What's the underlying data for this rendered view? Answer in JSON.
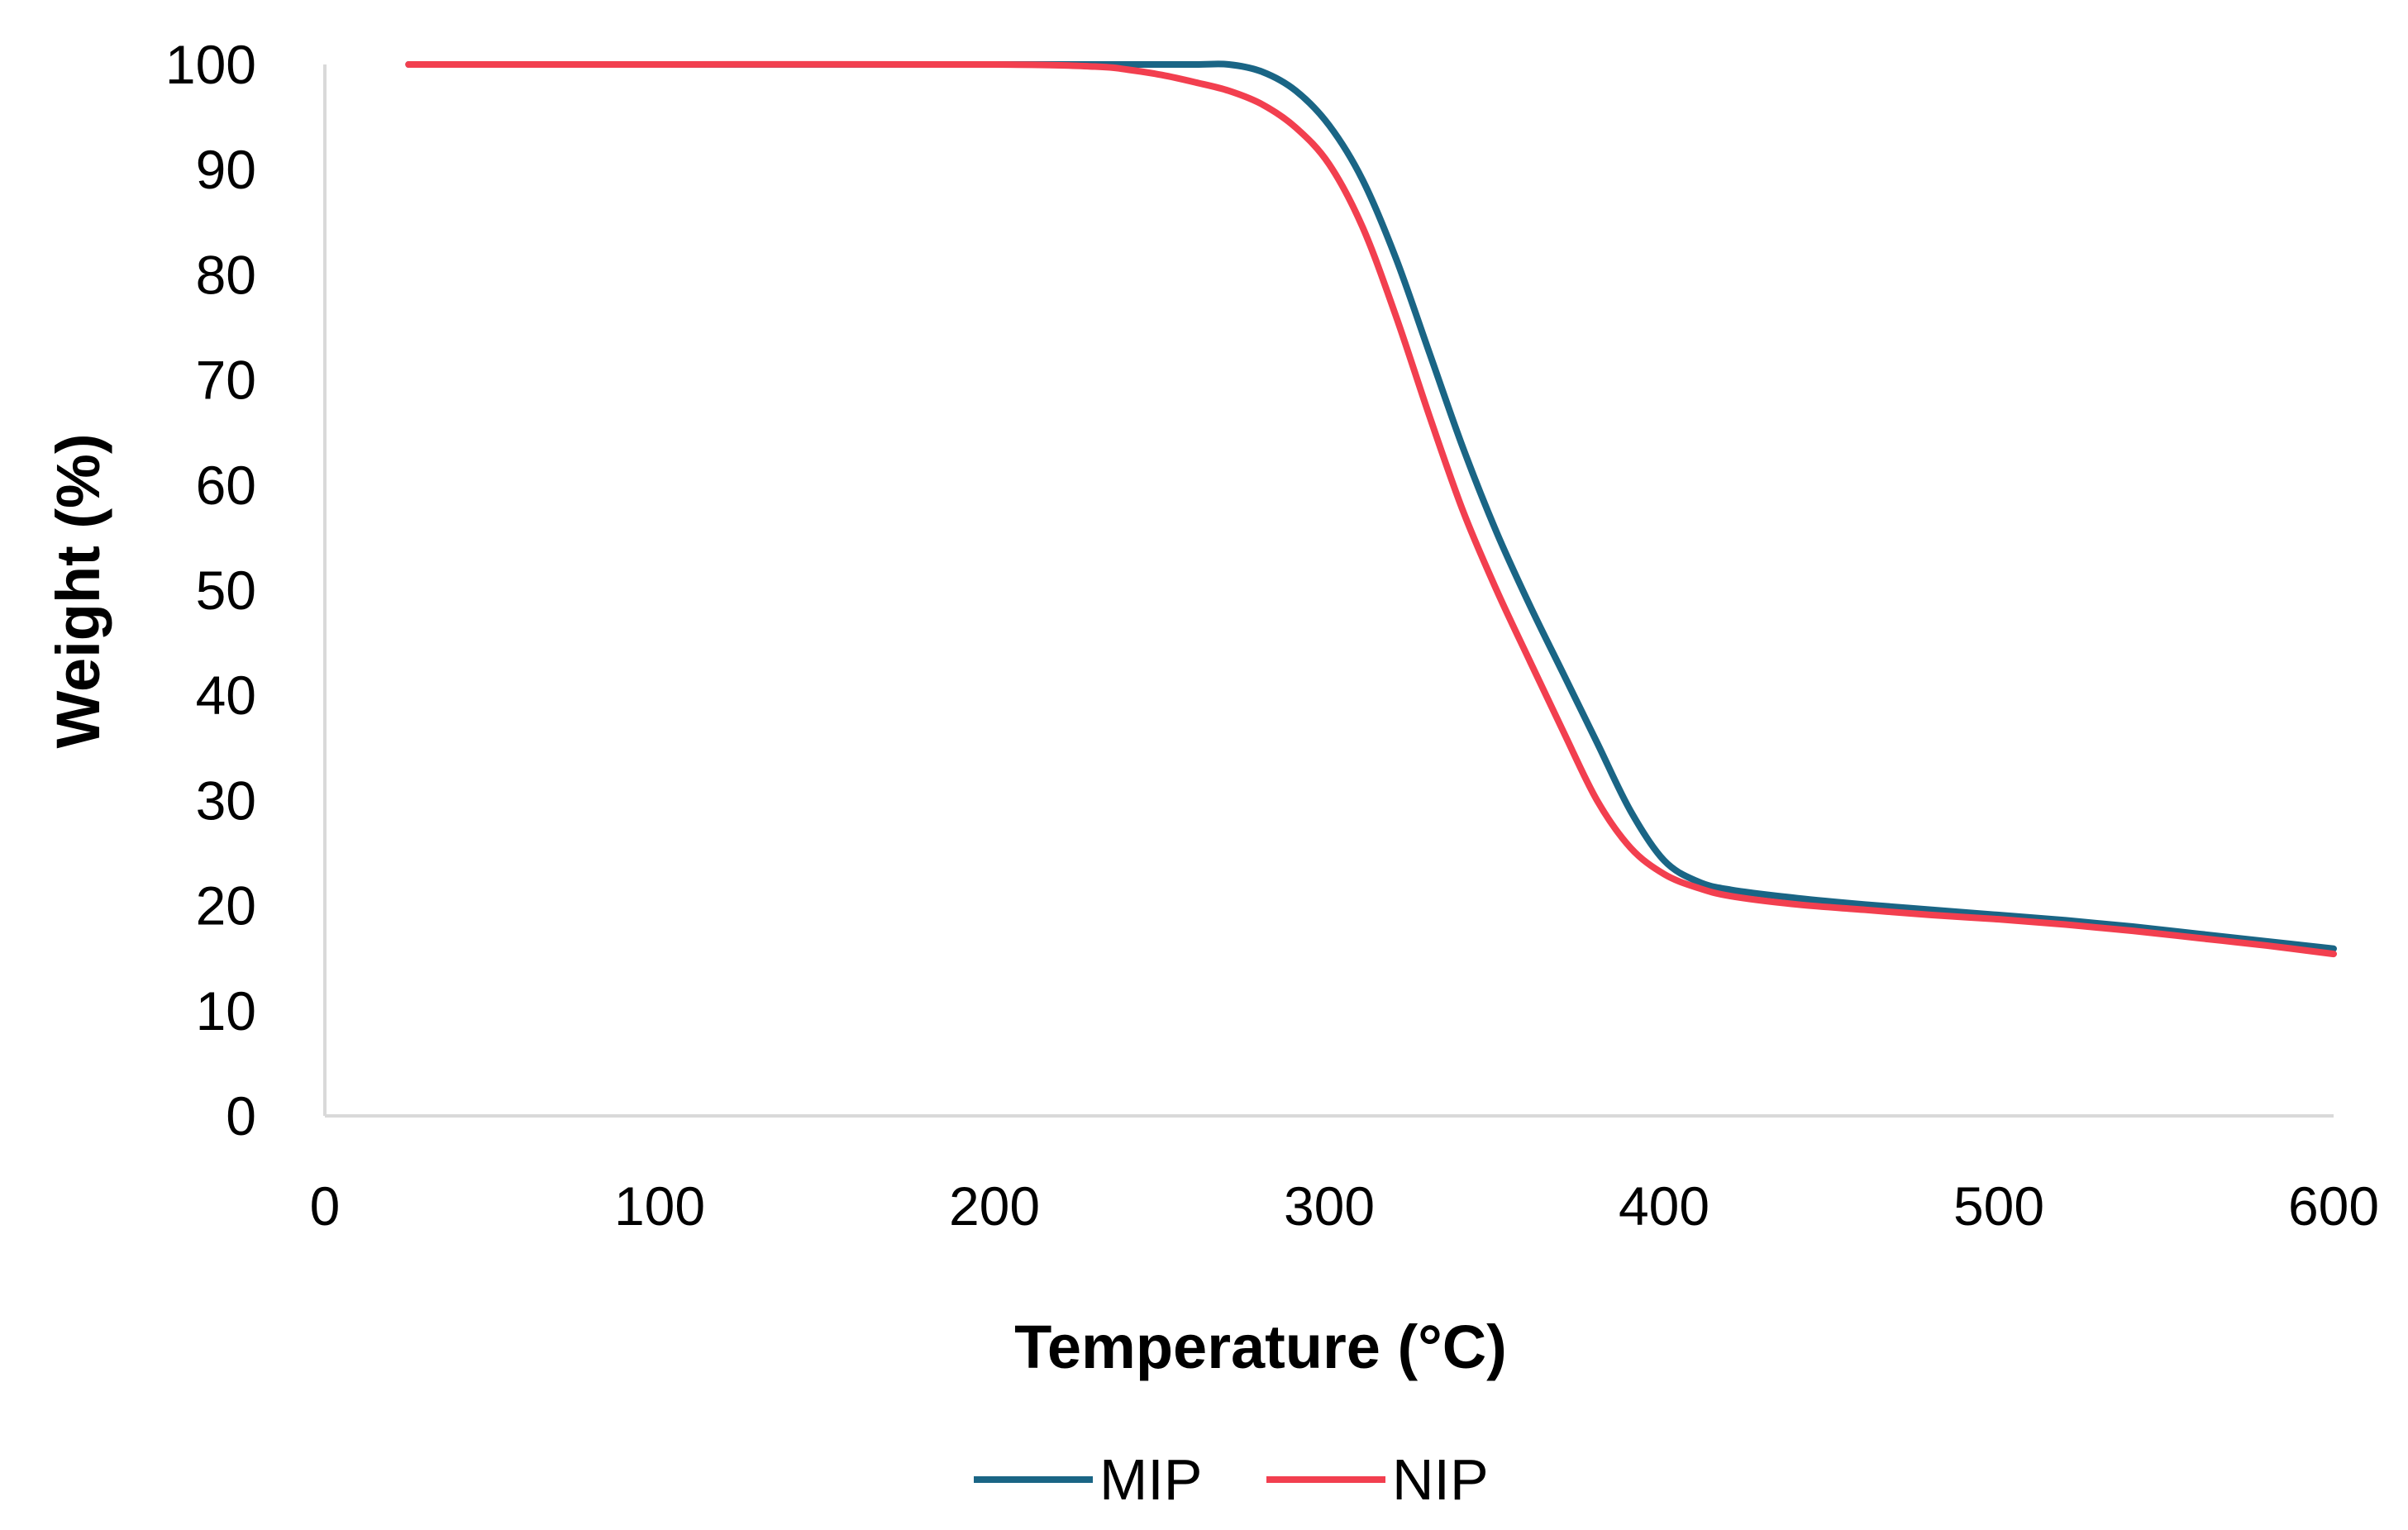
{
  "chart_data": {
    "type": "line",
    "title": "",
    "xlabel": "Temperature (°C)",
    "ylabel": "Weight (%)",
    "xlim": [
      0,
      600
    ],
    "ylim": [
      0,
      100
    ],
    "x_ticks": [
      0,
      100,
      200,
      300,
      400,
      500,
      600
    ],
    "y_ticks": [
      0,
      10,
      20,
      30,
      40,
      50,
      60,
      70,
      80,
      90,
      100
    ],
    "x_tick_labels": [
      "0",
      "100",
      "200",
      "300",
      "400",
      "500",
      "600"
    ],
    "y_tick_labels": [
      "0",
      "10",
      "20",
      "30",
      "40",
      "50",
      "60",
      "70",
      "80",
      "90",
      "100"
    ],
    "grid": false,
    "legend_position": "bottom-center",
    "series": [
      {
        "name": "MIP",
        "color": "#1a6585",
        "x": [
          25,
          100,
          200,
          240,
          260,
          270,
          280,
          290,
          300,
          310,
          320,
          330,
          340,
          350,
          360,
          370,
          380,
          390,
          400,
          410,
          420,
          440,
          460,
          480,
          500,
          520,
          540,
          560,
          580,
          600
        ],
        "y": [
          100,
          100,
          100,
          100,
          100,
          100,
          99.3,
          97.5,
          94.2,
          89,
          81.5,
          72.5,
          63.5,
          55.5,
          48.5,
          42,
          35.5,
          29,
          24.3,
          22.3,
          21.5,
          20.7,
          20.1,
          19.6,
          19.1,
          18.6,
          18.0,
          17.3,
          16.6,
          15.9
        ]
      },
      {
        "name": "NIP",
        "color": "#f23f4f",
        "x": [
          25,
          100,
          200,
          230,
          240,
          250,
          260,
          270,
          280,
          290,
          300,
          310,
          320,
          330,
          340,
          350,
          360,
          370,
          380,
          390,
          400,
          410,
          420,
          440,
          460,
          480,
          500,
          520,
          540,
          560,
          580,
          600
        ],
        "y": [
          100,
          100,
          100,
          99.8,
          99.5,
          99,
          98.3,
          97.5,
          96.2,
          94,
          90.5,
          84.5,
          76,
          66.5,
          57.5,
          50,
          43.2,
          36.5,
          30,
          25.5,
          23,
          21.7,
          20.9,
          20.1,
          19.6,
          19.1,
          18.7,
          18.2,
          17.6,
          16.9,
          16.2,
          15.4
        ]
      }
    ]
  }
}
